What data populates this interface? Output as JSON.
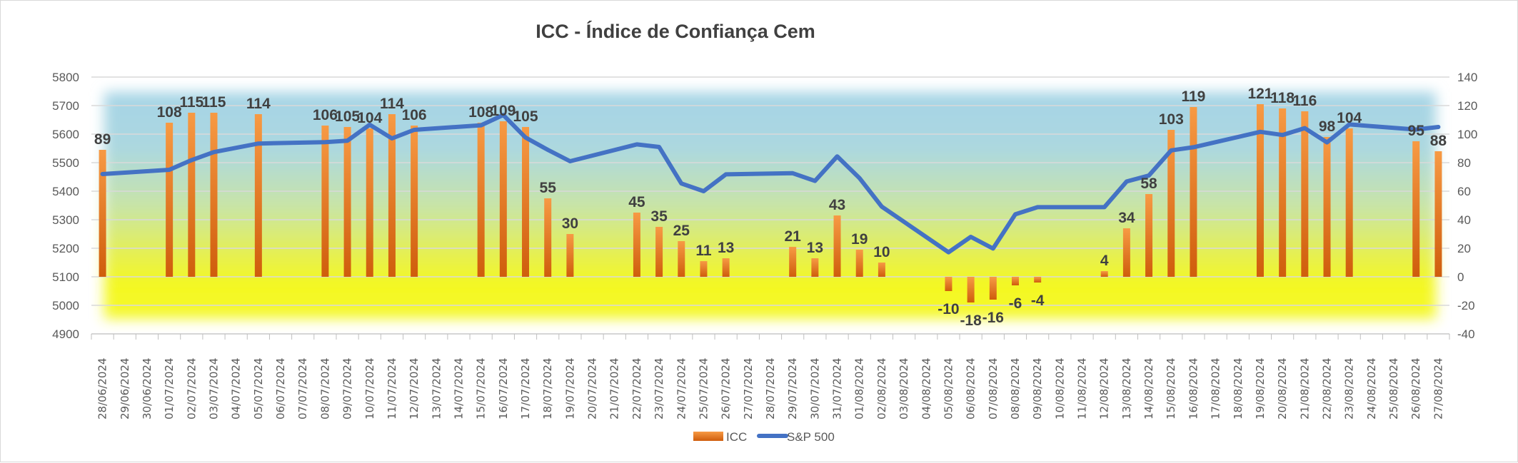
{
  "chart_data": {
    "type": "bar+line",
    "title": "ICC - Índice de Confiança Cem",
    "categories": [
      "28/06/2024",
      "29/06/2024",
      "30/06/2024",
      "01/07/2024",
      "02/07/2024",
      "03/07/2024",
      "04/07/2024",
      "05/07/2024",
      "06/07/2024",
      "07/07/2024",
      "08/07/2024",
      "09/07/2024",
      "10/07/2024",
      "11/07/2024",
      "12/07/2024",
      "13/07/2024",
      "14/07/2024",
      "15/07/2024",
      "16/07/2024",
      "17/07/2024",
      "18/07/2024",
      "19/07/2024",
      "20/07/2024",
      "21/07/2024",
      "22/07/2024",
      "23/07/2024",
      "24/07/2024",
      "25/07/2024",
      "26/07/2024",
      "27/07/2024",
      "28/07/2024",
      "29/07/2024",
      "30/07/2024",
      "31/07/2024",
      "01/08/2024",
      "02/08/2024",
      "03/08/2024",
      "04/08/2024",
      "05/08/2024",
      "06/08/2024",
      "07/08/2024",
      "08/08/2024",
      "09/08/2024",
      "10/08/2024",
      "11/08/2024",
      "12/08/2024",
      "13/08/2024",
      "14/08/2024",
      "15/08/2024",
      "16/08/2024",
      "17/08/2024",
      "18/08/2024",
      "19/08/2024",
      "20/08/2024",
      "21/08/2024",
      "22/08/2024",
      "23/08/2024",
      "24/08/2024",
      "25/08/2024",
      "26/08/2024",
      "27/08/2024"
    ],
    "series": [
      {
        "name": "ICC",
        "type": "bar",
        "axis": "right",
        "color": "#ed7d31",
        "values": [
          89,
          null,
          null,
          108,
          115,
          115,
          null,
          114,
          null,
          null,
          106,
          105,
          104,
          114,
          106,
          null,
          null,
          108,
          109,
          105,
          55,
          30,
          null,
          null,
          45,
          35,
          25,
          11,
          13,
          null,
          null,
          21,
          13,
          43,
          19,
          10,
          null,
          null,
          -10,
          -18,
          -16,
          -6,
          -4,
          null,
          null,
          4,
          34,
          58,
          103,
          119,
          null,
          null,
          121,
          118,
          116,
          98,
          104,
          null,
          null,
          95,
          88
        ]
      },
      {
        "name": "S&P 500",
        "type": "line",
        "axis": "left",
        "color": "#4472c4",
        "values": [
          5460,
          null,
          null,
          5475,
          5509,
          5537,
          null,
          5567,
          null,
          null,
          5572,
          5577,
          5633,
          5585,
          5615,
          null,
          null,
          5631,
          5667,
          5588,
          5545,
          5505,
          null,
          null,
          5564,
          5555,
          5427,
          5400,
          5459,
          null,
          null,
          5463,
          5436,
          5522,
          5446,
          5346,
          null,
          null,
          5186,
          5240,
          5199,
          5319,
          5344,
          null,
          null,
          5344,
          5434,
          5455,
          5543,
          5554,
          null,
          null,
          5608,
          5597,
          5621,
          5571,
          5634,
          null,
          null,
          5616,
          5625
        ]
      }
    ],
    "y_left": {
      "range": [
        4900,
        5800
      ],
      "ticks": [
        "4900",
        "5000",
        "5100",
        "5200",
        "5300",
        "5400",
        "5500",
        "5600",
        "5700",
        "5800"
      ]
    },
    "y_right": {
      "range": [
        -40,
        140
      ],
      "ticks": [
        "-40",
        "-20",
        "0",
        "20",
        "40",
        "60",
        "80",
        "100",
        "120",
        "140"
      ]
    },
    "grid": true,
    "legend": {
      "position": "bottom",
      "items": [
        "ICC",
        "S&P 500"
      ]
    }
  }
}
